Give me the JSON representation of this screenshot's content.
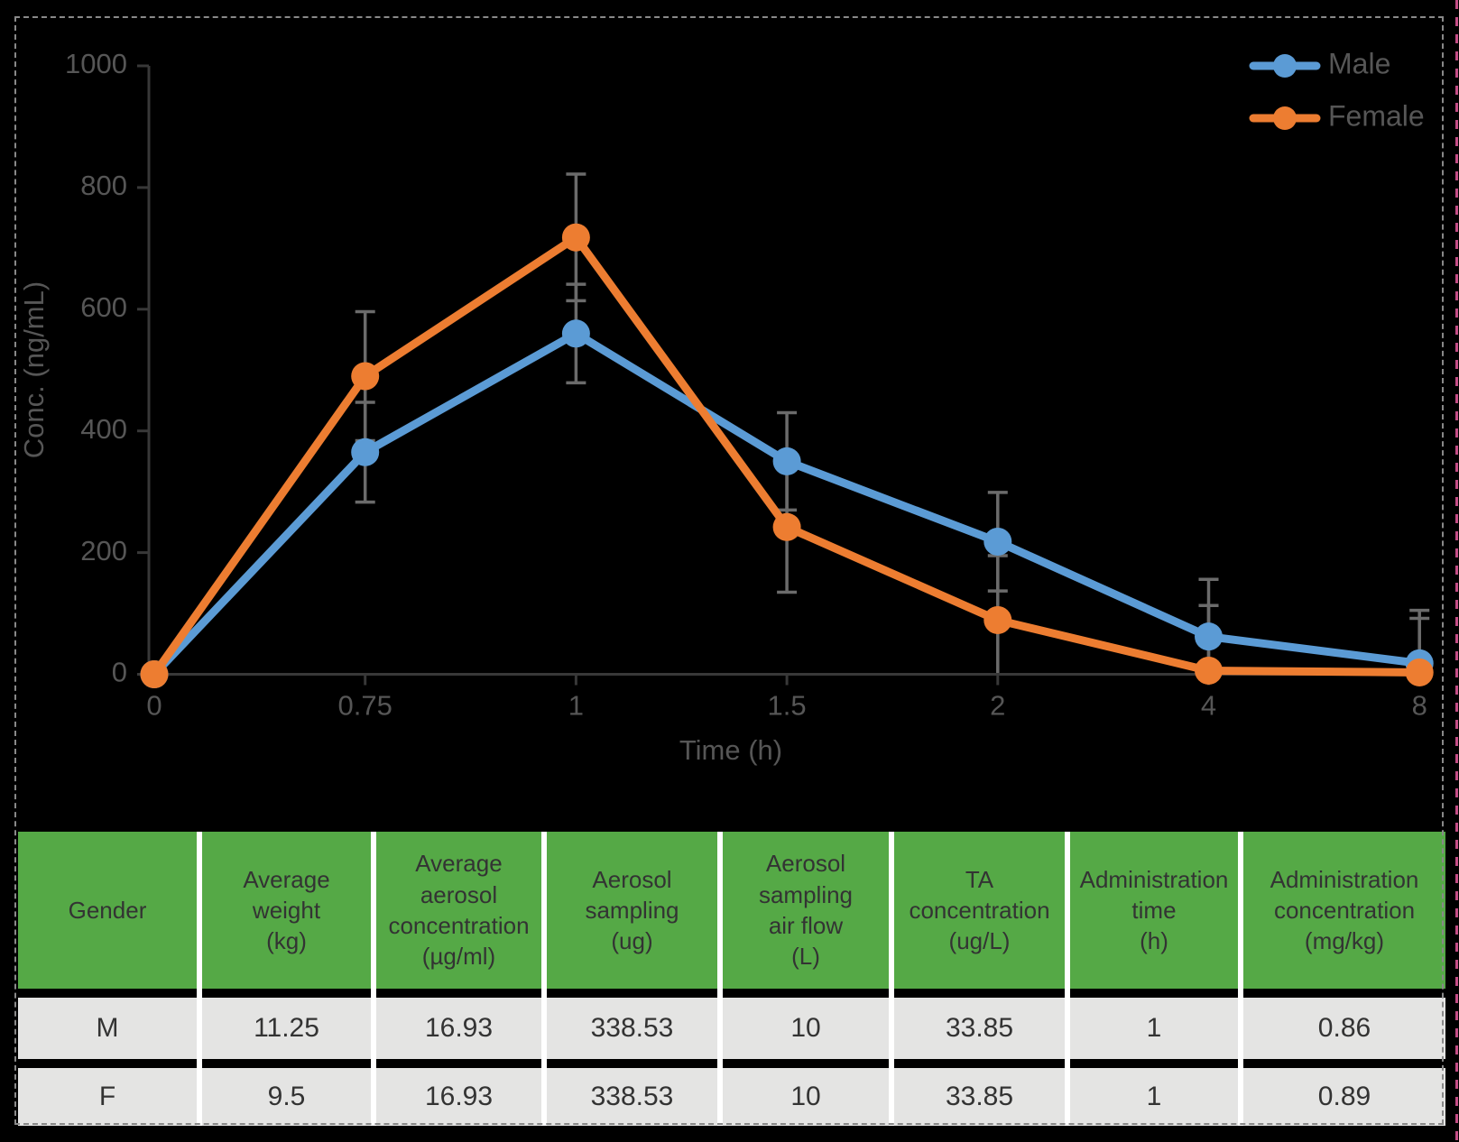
{
  "chart_data": {
    "type": "line",
    "title": "",
    "categories": [
      "0",
      "0.75",
      "1",
      "1.5",
      "2",
      "4",
      "8"
    ],
    "x_numeric": [
      0,
      0.75,
      1,
      1.5,
      2,
      4,
      8
    ],
    "xlabel": "Time (h)",
    "ylabel": "Conc. (ng/mL)",
    "ylim": [
      0,
      1000
    ],
    "y_ticks": [
      0,
      200,
      400,
      600,
      800,
      1000
    ],
    "grid": "off",
    "legend_position": "top-right",
    "error_bar_color": "#6b6b6b",
    "axis_color": "#383838",
    "text_color": "#565656",
    "series": [
      {
        "name": "Male",
        "color": "#5B9BD5",
        "values": [
          0,
          365,
          560,
          350,
          218,
          62,
          18
        ],
        "error": [
          0,
          82,
          81,
          80,
          81,
          94,
          87
        ]
      },
      {
        "name": "Female",
        "color": "#ED7D31",
        "values": [
          0,
          490,
          718,
          242,
          89,
          6,
          3
        ],
        "error": [
          0,
          106,
          104,
          107,
          106,
          107,
          89
        ]
      }
    ]
  },
  "table": {
    "header_bg": "#55a946",
    "row_bg": "#e4e4e3",
    "columns": [
      "Gender",
      "Average\nweight\n(kg)",
      "Average\naerosol\nconcentration\n(µg/ml)",
      "Aerosol\nsampling\n(ug)",
      "Aerosol\nsampling\nair flow\n(L)",
      "TA\nconcentration\n(ug/L)",
      "Administration\ntime\n(h)",
      "Administration\nconcentration\n(mg/kg)"
    ],
    "rows": [
      [
        "M",
        "11.25",
        "16.93",
        "338.53",
        "10",
        "33.85",
        "1",
        "0.86"
      ],
      [
        "F",
        "9.5",
        "16.93",
        "338.53",
        "10",
        "33.85",
        "1",
        "0.89"
      ]
    ]
  }
}
